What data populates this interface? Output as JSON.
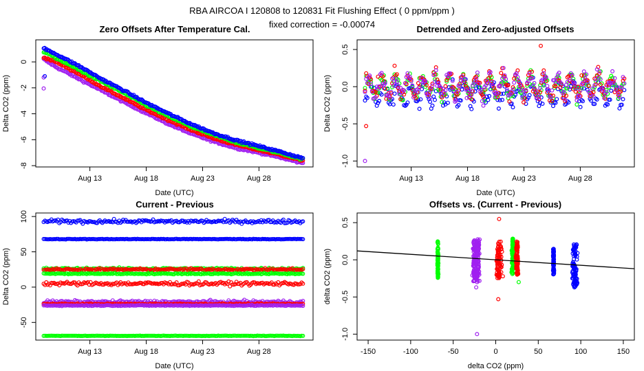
{
  "page": {
    "title": "RBA   AIRCOA I   120808 to 120831   Fit Flushing Effect ( 0 ppm/ppm )",
    "subtitle": "fixed correction = -0.00074"
  },
  "colors": {
    "blue": "#0000ff",
    "green": "#00ff00",
    "red": "#ff0000",
    "purple": "#a020f0",
    "line": "#000000"
  },
  "chart_data": [
    {
      "type": "scatter",
      "id": "p1",
      "title": "Zero Offsets After Temperature Cal.",
      "xlabel": "Date (UTC)",
      "ylabel": "Delta CO2 (ppm)",
      "xlim": [
        8.2,
        32.8
      ],
      "ylim": [
        -8.1,
        1.7
      ],
      "xticks": [
        {
          "v": 13,
          "label": "Aug 13"
        },
        {
          "v": 18,
          "label": "Aug 18"
        },
        {
          "v": 23,
          "label": "Aug 23"
        },
        {
          "v": 28,
          "label": "Aug 28"
        }
      ],
      "yticks": [
        {
          "v": 0,
          "label": "0"
        },
        {
          "v": -2,
          "label": "-2"
        },
        {
          "v": -4,
          "label": "-4"
        },
        {
          "v": -6,
          "label": "-6"
        },
        {
          "v": -8,
          "label": "-8"
        }
      ],
      "series": [
        {
          "name": "purple",
          "color": "purple",
          "x": [
            8.9,
            10,
            12,
            14,
            16,
            18,
            20,
            22,
            24,
            26,
            28,
            30,
            31.8
          ],
          "y": [
            0.2,
            -0.4,
            -1.3,
            -2.2,
            -3.1,
            -3.95,
            -4.8,
            -5.55,
            -6.15,
            -6.65,
            -7.0,
            -7.4,
            -7.8
          ]
        },
        {
          "name": "red",
          "color": "red",
          "x": [
            8.9,
            10,
            12,
            14,
            16,
            18,
            20,
            22,
            24,
            26,
            28,
            30,
            31.8
          ],
          "y": [
            0.35,
            0.0,
            -0.9,
            -1.9,
            -2.8,
            -3.7,
            -4.5,
            -5.25,
            -5.9,
            -6.4,
            -6.8,
            -7.2,
            -7.6
          ]
        },
        {
          "name": "green",
          "color": "green",
          "x": [
            8.9,
            10,
            12,
            14,
            16,
            18,
            20,
            22,
            24,
            26,
            28,
            30,
            31.8
          ],
          "y": [
            0.8,
            0.3,
            -0.6,
            -1.5,
            -2.4,
            -3.35,
            -4.2,
            -5.0,
            -5.65,
            -6.2,
            -6.65,
            -7.05,
            -7.5
          ]
        },
        {
          "name": "blue",
          "color": "blue",
          "x": [
            8.9,
            10,
            12,
            14,
            16,
            18,
            20,
            22,
            24,
            26,
            28,
            30,
            31.8
          ],
          "y": [
            1.05,
            0.6,
            -0.3,
            -1.3,
            -2.2,
            -3.15,
            -4.0,
            -4.8,
            -5.5,
            -6.05,
            -6.5,
            -6.95,
            -7.4
          ]
        }
      ]
    },
    {
      "type": "scatter",
      "id": "p2",
      "title": "Detrended and Zero-adjusted Offsets",
      "xlabel": "Date (UTC)",
      "ylabel": "Delta CO2 (ppm)",
      "xlim": [
        8.2,
        32.8
      ],
      "ylim": [
        -1.08,
        0.63
      ],
      "xticks": [
        {
          "v": 13,
          "label": "Aug 13"
        },
        {
          "v": 18,
          "label": "Aug 18"
        },
        {
          "v": 23,
          "label": "Aug 23"
        },
        {
          "v": 28,
          "label": "Aug 28"
        }
      ],
      "yticks": [
        {
          "v": 0.5,
          "label": "0.5"
        },
        {
          "v": 0,
          "label": "0.0"
        },
        {
          "v": -0.5,
          "label": "-0.5"
        },
        {
          "v": -1.0,
          "label": "-1.0"
        }
      ],
      "series": [
        {
          "name": "blue",
          "color": "blue",
          "center": -0.1,
          "spread": 0.3
        },
        {
          "name": "green",
          "color": "green",
          "center": 0.0,
          "spread": 0.28
        },
        {
          "name": "red",
          "color": "red",
          "center": 0.02,
          "spread": 0.3
        },
        {
          "name": "purple",
          "color": "purple",
          "center": 0.01,
          "spread": 0.3
        }
      ],
      "outliers": [
        {
          "color": "red",
          "x": 24.5,
          "y": 0.55
        },
        {
          "color": "red",
          "x": 9.0,
          "y": -0.53
        },
        {
          "color": "purple",
          "x": 8.9,
          "y": -1.0
        }
      ]
    },
    {
      "type": "scatter",
      "id": "p3",
      "title": "Current - Previous",
      "xlabel": "Date (UTC)",
      "ylabel": "Delta CO2 (ppm)",
      "xlim": [
        8.2,
        32.8
      ],
      "ylim": [
        -75,
        105
      ],
      "xticks": [
        {
          "v": 13,
          "label": "Aug 13"
        },
        {
          "v": 18,
          "label": "Aug 18"
        },
        {
          "v": 23,
          "label": "Aug 23"
        },
        {
          "v": 28,
          "label": "Aug 28"
        }
      ],
      "yticks": [
        {
          "v": 100,
          "label": "100"
        },
        {
          "v": 50,
          "label": "50"
        },
        {
          "v": 0,
          "label": "0"
        },
        {
          "v": -50,
          "label": "-50"
        }
      ],
      "series": [
        {
          "name": "blue",
          "color": "blue",
          "level": 93,
          "noise": 2.5
        },
        {
          "name": "blue",
          "color": "blue",
          "level": 68,
          "noise": 0.4
        },
        {
          "name": "green",
          "color": "green",
          "level": 26,
          "noise": 1.5
        },
        {
          "name": "red",
          "color": "red",
          "level": 25,
          "noise": 1.5
        },
        {
          "name": "green",
          "color": "green",
          "level": 19,
          "noise": 0.8
        },
        {
          "name": "red",
          "color": "red",
          "level": 5,
          "noise": 2.5
        },
        {
          "name": "purple",
          "color": "purple",
          "level": -21,
          "noise": 2
        },
        {
          "name": "red",
          "color": "red",
          "level": -24,
          "noise": 0.8
        },
        {
          "name": "purple",
          "color": "purple",
          "level": -26,
          "noise": 0.6
        },
        {
          "name": "green",
          "color": "green",
          "level": -69,
          "noise": 0.3
        }
      ]
    },
    {
      "type": "scatter",
      "id": "p4",
      "title": "Offsets vs. (Current - Previous)",
      "xlabel": "delta CO2 (ppm)",
      "ylabel": "delta CO2 (ppm)",
      "xlim": [
        -163,
        163
      ],
      "ylim": [
        -1.08,
        0.63
      ],
      "xticks": [
        {
          "v": -150,
          "label": "-150"
        },
        {
          "v": -100,
          "label": "-100"
        },
        {
          "v": -50,
          "label": "-50"
        },
        {
          "v": 0,
          "label": "0"
        },
        {
          "v": 50,
          "label": "50"
        },
        {
          "v": 100,
          "label": "100"
        },
        {
          "v": 150,
          "label": "150"
        }
      ],
      "yticks": [
        {
          "v": 0.5,
          "label": "0.5"
        },
        {
          "v": 0,
          "label": "0.0"
        },
        {
          "v": -0.5,
          "label": "-0.5"
        },
        {
          "v": -1.0,
          "label": "-1.0"
        }
      ],
      "clusters": [
        {
          "color": "green",
          "x": -68,
          "xspread": 1,
          "ymin": -0.25,
          "ymax": 0.25
        },
        {
          "color": "purple",
          "x": -25,
          "xspread": 3,
          "ymin": -0.3,
          "ymax": 0.28
        },
        {
          "color": "purple",
          "x": -21,
          "xspread": 3,
          "ymin": -0.3,
          "ymax": 0.28
        },
        {
          "color": "red",
          "x": 4,
          "xspread": 5,
          "ymin": -0.25,
          "ymax": 0.25
        },
        {
          "color": "green",
          "x": 20,
          "xspread": 2,
          "ymin": -0.2,
          "ymax": 0.3
        },
        {
          "color": "red",
          "x": 25,
          "xspread": 2,
          "ymin": -0.2,
          "ymax": 0.25
        },
        {
          "color": "blue",
          "x": 68,
          "xspread": 1,
          "ymin": -0.2,
          "ymax": 0.15
        },
        {
          "color": "blue",
          "x": 93,
          "xspread": 5,
          "ymin": -0.38,
          "ymax": 0.22
        }
      ],
      "outliers": [
        {
          "color": "red",
          "x": 4,
          "y": 0.55
        },
        {
          "color": "red",
          "x": 3,
          "y": -0.53
        },
        {
          "color": "purple",
          "x": -22,
          "y": -1.0
        },
        {
          "color": "purple",
          "x": -23,
          "y": -0.37
        },
        {
          "color": "green",
          "x": 27,
          "y": -0.3
        }
      ],
      "fit_line": {
        "intercept": -0.00074,
        "slope": -0.00074,
        "x": [
          -163,
          163
        ],
        "y": [
          0.12,
          -0.12
        ]
      }
    }
  ]
}
